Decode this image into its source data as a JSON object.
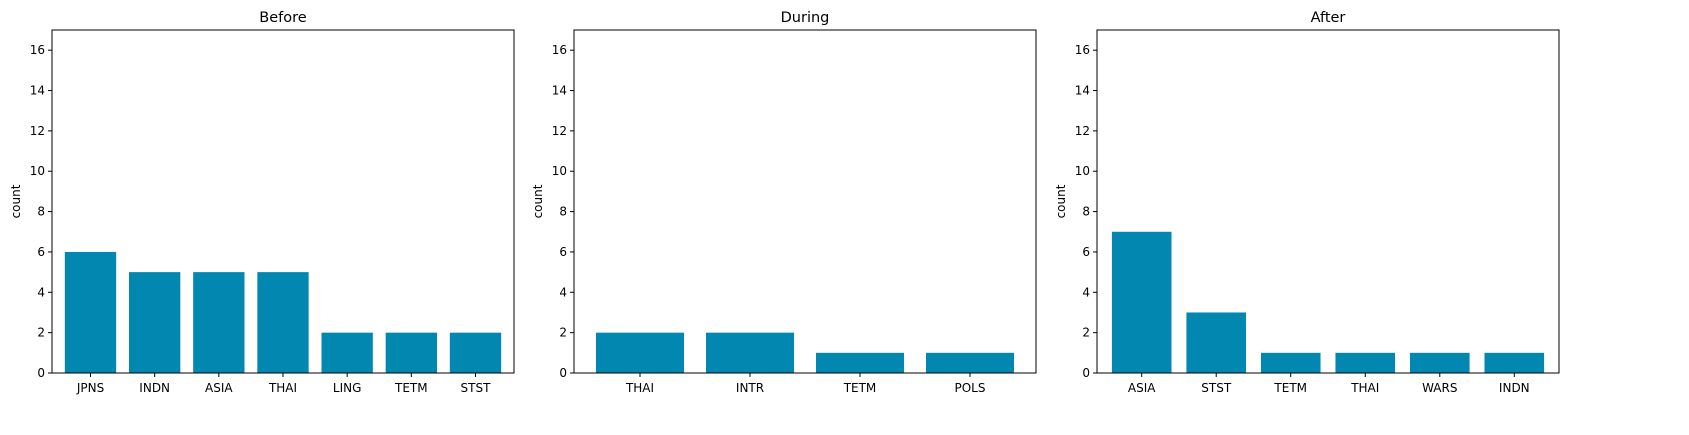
{
  "figure": {
    "bar_color": "#0288b0",
    "background": "#ffffff"
  },
  "chart_data": [
    {
      "type": "bar",
      "title": "Before",
      "xlabel": "",
      "ylabel": "count",
      "ylim": [
        0,
        17
      ],
      "yticks": [
        0,
        2,
        4,
        6,
        8,
        10,
        12,
        14,
        16
      ],
      "categories": [
        "JPNS",
        "INDN",
        "ASIA",
        "THAI",
        "LING",
        "TETM",
        "STST"
      ],
      "values": [
        6,
        5,
        5,
        5,
        2,
        2,
        2
      ],
      "grid": false
    },
    {
      "type": "bar",
      "title": "During",
      "xlabel": "",
      "ylabel": "count",
      "ylim": [
        0,
        17
      ],
      "yticks": [
        0,
        2,
        4,
        6,
        8,
        10,
        12,
        14,
        16
      ],
      "categories": [
        "THAI",
        "INTR",
        "TETM",
        "POLS"
      ],
      "values": [
        2,
        2,
        1,
        1
      ],
      "grid": false
    },
    {
      "type": "bar",
      "title": "After",
      "xlabel": "",
      "ylabel": "count",
      "ylim": [
        0,
        17
      ],
      "yticks": [
        0,
        2,
        4,
        6,
        8,
        10,
        12,
        14,
        16
      ],
      "categories": [
        "ASIA",
        "STST",
        "TETM",
        "THAI",
        "WARS",
        "INDN"
      ],
      "values": [
        7,
        3,
        1,
        1,
        1,
        1
      ],
      "grid": false
    }
  ]
}
